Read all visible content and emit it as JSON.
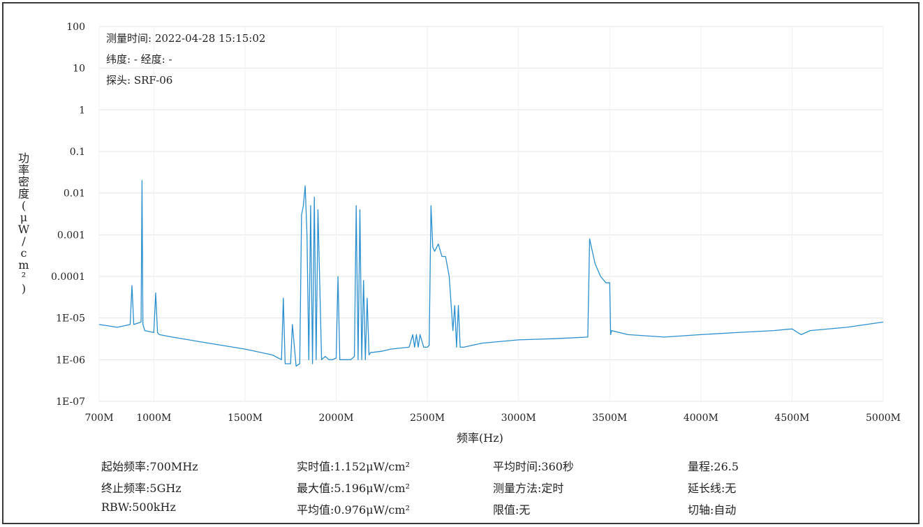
{
  "header": {
    "time_line": "测量时间: 2022-04-28 15:15:02",
    "geo_line": "纬度: - 经度: -",
    "probe_line": "探头: SRF-06"
  },
  "chart_data": {
    "type": "line",
    "title": "",
    "xlabel": "频率(Hz)",
    "ylabel": "功率密度(μW/cm²)",
    "y_scale": "log",
    "xlim": [
      700,
      5000
    ],
    "ylim": [
      1e-07,
      100
    ],
    "grid": true,
    "x_ticks": [
      700,
      1000,
      1500,
      2000,
      2500,
      3000,
      3500,
      4000,
      4500,
      5000
    ],
    "x_tick_labels": [
      "700M",
      "1000M",
      "1500M",
      "2000M",
      "2500M",
      "3000M",
      "3500M",
      "4000M",
      "4500M",
      "5000M"
    ],
    "y_ticks": [
      1e-07,
      1e-06,
      1e-05,
      0.0001,
      0.001,
      0.01,
      0.1,
      1,
      10,
      100
    ],
    "y_tick_labels": [
      "1E-07",
      "1E-06",
      "1E-05",
      "0.0001",
      "0.001",
      "0.01",
      "0.1",
      "1",
      "10",
      "100"
    ],
    "series": [
      {
        "color": "#2a8fcf",
        "x": [
          700,
          800,
          870,
          880,
          890,
          930,
          935,
          940,
          945,
          950,
          1000,
          1010,
          1020,
          1030,
          1100,
          1300,
          1500,
          1650,
          1700,
          1710,
          1720,
          1750,
          1760,
          1780,
          1800,
          1810,
          1820,
          1830,
          1840,
          1850,
          1860,
          1870,
          1880,
          1890,
          1900,
          1920,
          1940,
          1960,
          1980,
          2000,
          2010,
          2020,
          2030,
          2040,
          2050,
          2060,
          2080,
          2100,
          2110,
          2120,
          2130,
          2140,
          2150,
          2160,
          2170,
          2180,
          2190,
          2200,
          2250,
          2300,
          2400,
          2420,
          2430,
          2440,
          2450,
          2460,
          2480,
          2500,
          2510,
          2520,
          2530,
          2540,
          2560,
          2580,
          2600,
          2620,
          2640,
          2650,
          2660,
          2670,
          2680,
          2700,
          2800,
          3000,
          3200,
          3380,
          3390,
          3400,
          3420,
          3450,
          3480,
          3500,
          3505,
          3510,
          3600,
          3800,
          4000,
          4200,
          4400,
          4500,
          4550,
          4600,
          4800,
          5000
        ],
        "y": [
          7e-06,
          6e-06,
          7e-06,
          6e-05,
          7e-06,
          8e-06,
          0.02,
          7e-06,
          6e-06,
          5e-06,
          4.5e-06,
          4e-05,
          4.5e-06,
          4e-06,
          3.5e-06,
          2.5e-06,
          1.8e-06,
          1.3e-06,
          1e-06,
          3e-05,
          8e-07,
          8e-07,
          7e-06,
          7e-07,
          8e-07,
          0.003,
          0.005,
          0.015,
          0.001,
          1e-06,
          0.005,
          8e-07,
          0.008,
          1e-06,
          0.004,
          1e-06,
          1.2e-06,
          1e-06,
          1e-06,
          1.1e-06,
          0.0001,
          1e-06,
          1e-06,
          1e-06,
          1e-06,
          1e-06,
          1e-06,
          1.2e-06,
          0.005,
          1e-06,
          0.004,
          1e-06,
          8e-05,
          1e-06,
          3e-05,
          1.3e-06,
          1.5e-06,
          1.5e-06,
          1.6e-06,
          1.8e-06,
          2e-06,
          4e-06,
          2e-06,
          4e-06,
          2e-06,
          4e-06,
          2e-06,
          2e-06,
          2.2e-06,
          0.005,
          0.0005,
          0.0004,
          0.0006,
          0.0003,
          0.0003,
          0.0001,
          5e-06,
          2e-05,
          2e-06,
          2e-05,
          2e-06,
          2e-06,
          2.5e-06,
          3e-06,
          3.2e-06,
          3.5e-06,
          0.0008,
          0.0005,
          0.0002,
          0.0001,
          7e-05,
          7e-05,
          4e-06,
          5e-06,
          4e-06,
          3.5e-06,
          4e-06,
          4.5e-06,
          5e-06,
          5.5e-06,
          4e-06,
          5e-06,
          6e-06,
          8e-06
        ]
      }
    ]
  },
  "info": {
    "start_freq": "起始频率:700MHz",
    "stop_freq": "终止频率:5GHz",
    "rbw": "RBW:500kHz",
    "realtime": "实时值:1.152μW/cm²",
    "maximum": "最大值:5.196μW/cm²",
    "average": "平均值:0.976μW/cm²",
    "avg_time": "平均时间:360秒",
    "method": "测量方法:定时",
    "limit": "限值:无",
    "range": "量程:26.5",
    "extension": "延长线:无",
    "cut_axis": "切轴:自动"
  }
}
